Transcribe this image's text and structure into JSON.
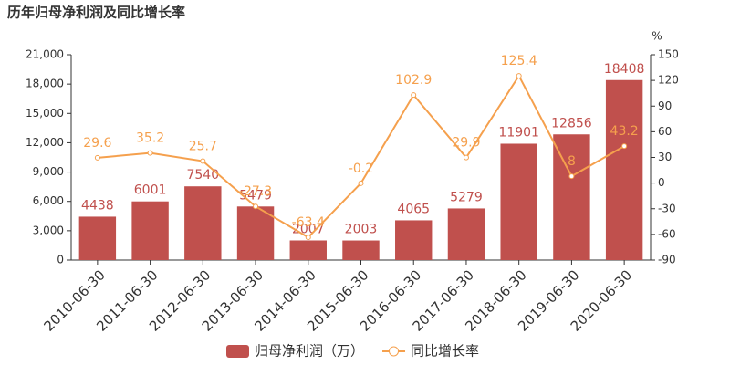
{
  "chart_data": {
    "type": "bar",
    "title": "历年归母净利润及同比增长率",
    "categories": [
      "2010-06-30",
      "2011-06-30",
      "2012-06-30",
      "2013-06-30",
      "2014-06-30",
      "2015-06-30",
      "2016-06-30",
      "2017-06-30",
      "2018-06-30",
      "2019-06-30",
      "2020-06-30"
    ],
    "series": [
      {
        "name": "归母净利润（万）",
        "type": "bar",
        "color": "#c0504d",
        "values": [
          4438,
          6001,
          7540,
          5479,
          2007,
          2003,
          4065,
          5279,
          11901,
          12856,
          18408
        ]
      },
      {
        "name": "同比增长率",
        "type": "line",
        "axis": "y2",
        "color": "#f5a04d",
        "values": [
          29.6,
          35.2,
          25.7,
          -27.3,
          -63.4,
          -0.2,
          102.9,
          29.9,
          125.4,
          8,
          43.2
        ]
      }
    ],
    "ylim": [
      0,
      21000
    ],
    "yticks": [
      0,
      {
        "value": 3000,
        "label": "3,000"
      },
      {
        "value": 6000,
        "label": "6,000"
      },
      {
        "value": 9000,
        "label": "9,000"
      },
      {
        "value": 12000,
        "label": "12,000"
      },
      {
        "value": 15000,
        "label": "15,000"
      },
      {
        "value": 18000,
        "label": "18,000"
      },
      {
        "value": 21000,
        "label": "21,000"
      }
    ],
    "y2label": "%",
    "y2lim": [
      -90,
      150
    ],
    "y2ticks": [
      -90,
      -60,
      -30,
      0,
      30,
      60,
      90,
      120,
      150
    ],
    "legend": "bottom"
  }
}
